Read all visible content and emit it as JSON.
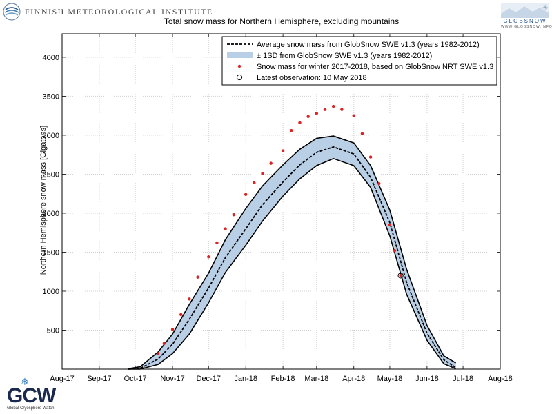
{
  "branding": {
    "fmi": "FINNISH METEOROLOGICAL INSTITUTE",
    "globsnow": "GLOBSNOW",
    "globsnow_url": "WWW.GLOBSNOW.INFO",
    "gcw": "GCW",
    "gcw_sub": "Global Cryosphere Watch"
  },
  "chart_data": {
    "type": "line",
    "title": "Total snow mass for Northern Hemisphere, excluding mountains",
    "ylabel": "Northern Hemisphere snow mass [Gigatons]",
    "xlabel": "",
    "ylim": [
      0,
      4300
    ],
    "yticks": [
      500,
      1000,
      1500,
      2000,
      2500,
      3000,
      3500,
      4000
    ],
    "xticks": [
      "Aug-17",
      "Sep-17",
      "Oct-17",
      "Nov-17",
      "Dec-17",
      "Jan-18",
      "Feb-18",
      "Mar-18",
      "Apr-18",
      "May-18",
      "Jun-18",
      "Jul-18",
      "Aug-18"
    ],
    "grid": true,
    "legend_position": "top-right",
    "legend": [
      "Average snow mass from GlobSnow SWE v1.3 (years 1982-2012)",
      "± 1SD from GlobSnow SWE v1.3 (years 1982-2012)",
      "Snow mass for winter 2017-2018, based on GlobSnow NRT SWE v1.3",
      "Latest observation: 10 May 2018"
    ],
    "colors": {
      "average": "#000000",
      "band": "#b8cfe6",
      "winter": "#dd2222",
      "latest": "#000000"
    },
    "average": {
      "x": [
        "2017-09-25",
        "2017-10-05",
        "2017-10-20",
        "2017-11-01",
        "2017-11-15",
        "2017-12-01",
        "2017-12-15",
        "2018-01-01",
        "2018-01-15",
        "2018-02-01",
        "2018-02-15",
        "2018-03-01",
        "2018-03-15",
        "2018-04-01",
        "2018-04-15",
        "2018-05-01",
        "2018-05-15",
        "2018-06-01",
        "2018-06-15",
        "2018-06-25"
      ],
      "y": [
        0,
        10,
        130,
        320,
        640,
        1040,
        1430,
        1800,
        2110,
        2400,
        2620,
        2780,
        2850,
        2760,
        2460,
        1880,
        1110,
        460,
        120,
        20
      ]
    },
    "band_upper": {
      "x": [
        "2017-09-25",
        "2017-10-05",
        "2017-10-20",
        "2017-11-01",
        "2017-11-15",
        "2017-12-01",
        "2017-12-15",
        "2018-01-01",
        "2018-01-15",
        "2018-02-01",
        "2018-02-15",
        "2018-03-01",
        "2018-03-15",
        "2018-04-01",
        "2018-04-15",
        "2018-05-01",
        "2018-05-15",
        "2018-06-01",
        "2018-06-15",
        "2018-06-25"
      ],
      "y": [
        5,
        30,
        220,
        450,
        830,
        1230,
        1660,
        2060,
        2350,
        2620,
        2820,
        2960,
        2990,
        2900,
        2610,
        2040,
        1280,
        560,
        170,
        80
      ]
    },
    "band_lower": {
      "x": [
        "2017-09-25",
        "2017-10-05",
        "2017-10-20",
        "2017-11-01",
        "2017-11-15",
        "2017-12-01",
        "2017-12-15",
        "2018-01-01",
        "2018-01-15",
        "2018-02-01",
        "2018-02-15",
        "2018-03-01",
        "2018-03-15",
        "2018-04-01",
        "2018-04-15",
        "2018-05-01",
        "2018-05-15",
        "2018-06-01",
        "2018-06-15",
        "2018-06-25"
      ],
      "y": [
        0,
        0,
        60,
        200,
        450,
        850,
        1240,
        1590,
        1900,
        2220,
        2440,
        2610,
        2700,
        2610,
        2330,
        1710,
        960,
        370,
        70,
        5
      ]
    },
    "winter_2017_2018": {
      "x": [
        "2017-10-20",
        "2017-10-25",
        "2017-11-01",
        "2017-11-08",
        "2017-11-15",
        "2017-11-22",
        "2017-12-01",
        "2017-12-08",
        "2017-12-15",
        "2017-12-22",
        "2018-01-01",
        "2018-01-08",
        "2018-01-15",
        "2018-01-22",
        "2018-02-01",
        "2018-02-08",
        "2018-02-15",
        "2018-02-22",
        "2018-03-01",
        "2018-03-08",
        "2018-03-15",
        "2018-03-22",
        "2018-04-01",
        "2018-04-08",
        "2018-04-15",
        "2018-04-22",
        "2018-05-01",
        "2018-05-05",
        "2018-05-10"
      ],
      "y": [
        200,
        330,
        510,
        700,
        900,
        1180,
        1440,
        1620,
        1800,
        1980,
        2240,
        2390,
        2510,
        2640,
        2800,
        3060,
        3160,
        3240,
        3280,
        3330,
        3370,
        3330,
        3250,
        3020,
        2720,
        2380,
        1850,
        1520,
        1200
      ]
    },
    "latest": {
      "x": "2018-05-10",
      "y": 1200
    }
  }
}
